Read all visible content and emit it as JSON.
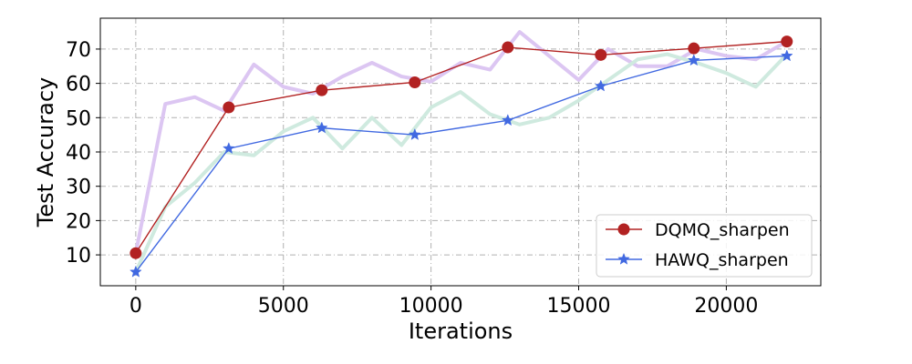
{
  "chart_data": {
    "type": "line",
    "xlabel": "Iterations",
    "ylabel": "Test Accuracy",
    "xlim": [
      -1200,
      23200
    ],
    "ylim": [
      1,
      79
    ],
    "x_ticks": [
      0,
      5000,
      10000,
      15000,
      20000
    ],
    "y_ticks": [
      10,
      20,
      30,
      40,
      50,
      60,
      70
    ],
    "grid": true,
    "legend_position": "lower-right",
    "background_series": [
      {
        "color": "#dcc6f2",
        "x": [
          0,
          1000,
          2000,
          3000,
          4000,
          5000,
          6000,
          7000,
          8000,
          9000,
          10000,
          11000,
          12000,
          13000,
          14000,
          15000,
          16000,
          17000,
          18000,
          19000,
          20000,
          21000,
          22000
        ],
        "values": [
          10.5,
          54,
          56,
          52,
          65.5,
          59,
          57,
          62,
          66,
          62,
          60.5,
          66,
          64,
          75,
          68,
          61,
          70,
          65,
          65,
          70,
          68,
          67,
          72
        ]
      },
      {
        "color": "#cfeadf",
        "x": [
          0,
          1000,
          2000,
          3000,
          4000,
          5000,
          6000,
          7000,
          8000,
          9000,
          10000,
          11000,
          12000,
          13000,
          14000,
          15000,
          16000,
          17000,
          18000,
          19000,
          20000,
          21000,
          22000
        ],
        "values": [
          5,
          24,
          31,
          40,
          39,
          46,
          50,
          41,
          50,
          42,
          53,
          57.5,
          51,
          48,
          50,
          55,
          61,
          67,
          68.5,
          66,
          63,
          59,
          68
        ]
      }
    ],
    "series": [
      {
        "name": "DQMQ_sharpen",
        "color": "#b22222",
        "marker": "circle",
        "x": [
          0,
          3150,
          6300,
          9450,
          12600,
          15750,
          18900,
          22050
        ],
        "values": [
          10.5,
          53,
          58,
          60.3,
          70.5,
          68.3,
          70.2,
          72.2
        ]
      },
      {
        "name": "HAWQ_sharpen",
        "color": "#4169e1",
        "marker": "star",
        "x": [
          0,
          3150,
          6300,
          9450,
          12600,
          15750,
          18900,
          22050
        ],
        "values": [
          5,
          41,
          47,
          45,
          49.2,
          59.2,
          66.7,
          68
        ]
      }
    ]
  }
}
